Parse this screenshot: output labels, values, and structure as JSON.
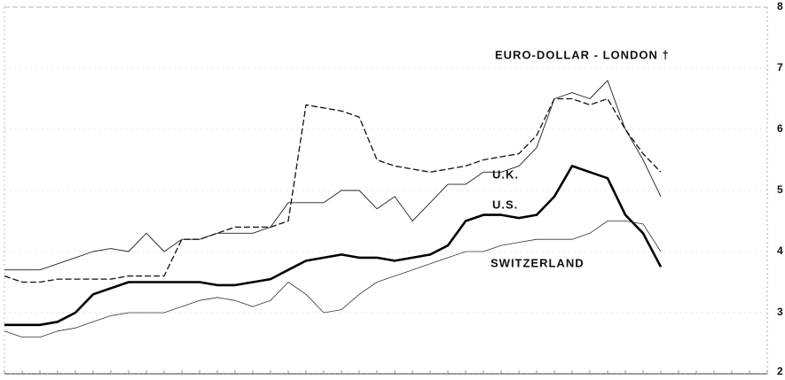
{
  "chart_data": {
    "type": "line",
    "categories": [
      null,
      null,
      null,
      null,
      null,
      null,
      null,
      null,
      null,
      null,
      null,
      null,
      null,
      null,
      null,
      null,
      null,
      null,
      null,
      null,
      null,
      null,
      null,
      null,
      null,
      null,
      null,
      null,
      null,
      null,
      null,
      null,
      null,
      null,
      null,
      null,
      null,
      null,
      null,
      null,
      null,
      null,
      null,
      null
    ],
    "series": [
      {
        "name": "EURO-DOLLAR - LONDON †",
        "color": "#222",
        "width": 0.9,
        "style": "solid",
        "values": [
          3.7,
          3.7,
          3.7,
          3.8,
          3.9,
          4.0,
          4.05,
          4.0,
          4.3,
          4.0,
          4.2,
          4.2,
          4.3,
          4.3,
          4.3,
          4.4,
          4.8,
          4.8,
          4.8,
          5.0,
          5.0,
          4.7,
          4.9,
          4.5,
          4.8,
          5.1,
          5.1,
          5.3,
          5.3,
          5.4,
          5.7,
          6.5,
          6.6,
          6.5,
          6.8,
          6.0,
          5.5,
          4.9,
          null,
          null,
          null,
          null,
          null,
          null
        ]
      },
      {
        "name": "U.K.",
        "color": "#111",
        "width": 1.3,
        "style": "dashed",
        "values": [
          3.6,
          3.5,
          3.5,
          3.55,
          3.55,
          3.55,
          3.55,
          3.6,
          3.6,
          3.6,
          4.2,
          4.2,
          4.3,
          4.4,
          4.4,
          4.4,
          4.5,
          6.4,
          6.35,
          6.3,
          6.2,
          5.5,
          5.4,
          5.35,
          5.3,
          5.35,
          5.4,
          5.5,
          5.55,
          5.6,
          5.9,
          6.5,
          6.5,
          6.4,
          6.5,
          6.0,
          5.6,
          5.3,
          null,
          null,
          null,
          null,
          null,
          null
        ]
      },
      {
        "name": "U.S.",
        "color": "#000",
        "width": 2.6,
        "style": "solid",
        "values": [
          2.8,
          2.8,
          2.8,
          2.85,
          3.0,
          3.3,
          3.4,
          3.5,
          3.5,
          3.5,
          3.5,
          3.5,
          3.45,
          3.45,
          3.5,
          3.55,
          3.7,
          3.85,
          3.9,
          3.95,
          3.9,
          3.9,
          3.85,
          3.9,
          3.95,
          4.1,
          4.5,
          4.6,
          4.6,
          4.55,
          4.6,
          4.9,
          5.4,
          5.3,
          5.2,
          4.6,
          4.3,
          3.75,
          null,
          null,
          null,
          null,
          null,
          null
        ]
      },
      {
        "name": "SWITZERLAND",
        "color": "#333",
        "width": 0.8,
        "style": "solid",
        "values": [
          2.7,
          2.6,
          2.6,
          2.7,
          2.75,
          2.85,
          2.95,
          3.0,
          3.0,
          3.0,
          3.1,
          3.2,
          3.25,
          3.2,
          3.1,
          3.2,
          3.5,
          3.3,
          3.0,
          3.05,
          3.3,
          3.5,
          3.6,
          3.7,
          3.8,
          3.9,
          4.0,
          4.0,
          4.1,
          4.15,
          4.2,
          4.2,
          4.2,
          4.3,
          4.5,
          4.5,
          4.45,
          4.0,
          null,
          null,
          null,
          null,
          null,
          null
        ]
      }
    ],
    "ylim": [
      2,
      8
    ],
    "yticks": [
      2,
      3,
      4,
      5,
      6,
      7,
      8
    ],
    "grid": true
  }
}
